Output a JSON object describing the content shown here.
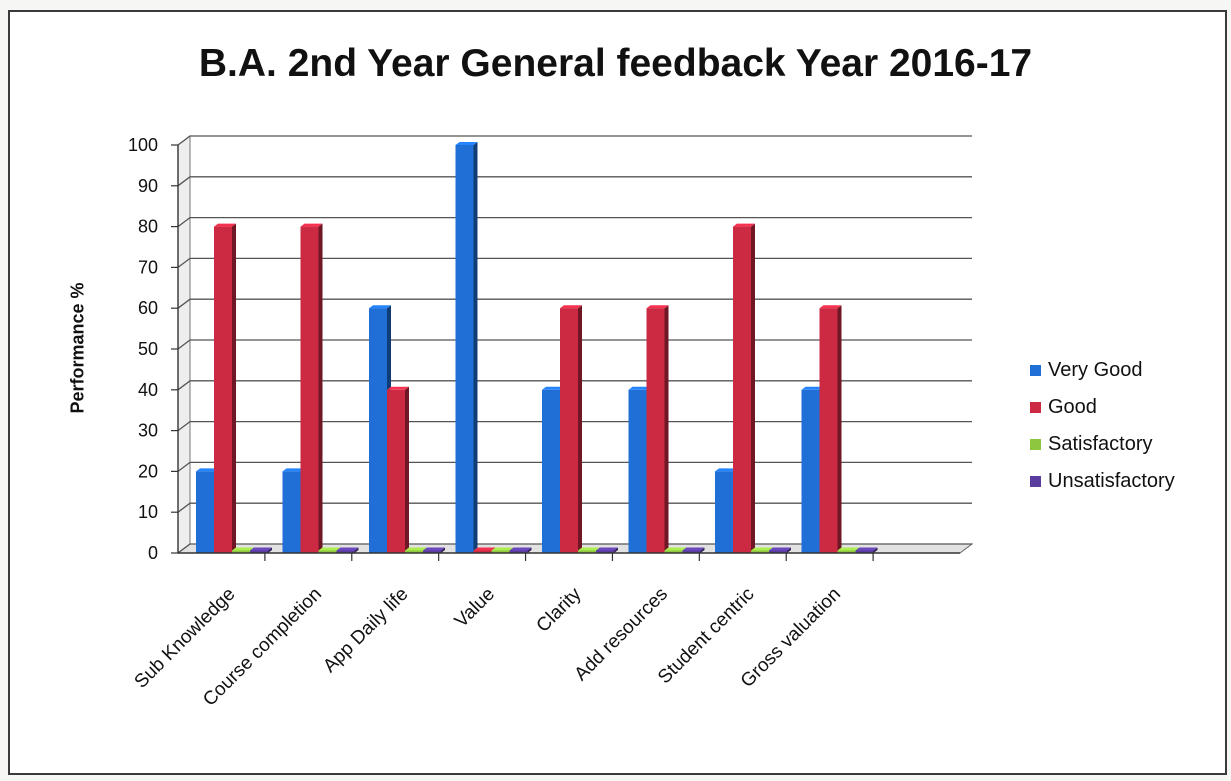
{
  "chart_data": {
    "type": "bar",
    "title": "B.A. 2nd Year General feedback Year 2016-17",
    "ylabel": "Performance %",
    "xlabel": "",
    "ylim": [
      0,
      100
    ],
    "yticks": [
      0,
      10,
      20,
      30,
      40,
      50,
      60,
      70,
      80,
      90,
      100
    ],
    "grid": true,
    "legend_position": "right",
    "categories": [
      "Sub Knowledge",
      "Course completion",
      "App Daily life",
      "Value",
      "Clarity",
      "Add resources",
      "Student centric",
      "Gross valuation"
    ],
    "series": [
      {
        "name": "Very Good",
        "color": "#1f6fd6",
        "values": [
          20,
          20,
          60,
          100,
          40,
          40,
          20,
          40
        ]
      },
      {
        "name": "Good",
        "color": "#cc2a43",
        "values": [
          80,
          80,
          40,
          0,
          60,
          60,
          80,
          60
        ]
      },
      {
        "name": "Satisfactory",
        "color": "#8fc640",
        "values": [
          0,
          0,
          0,
          0,
          0,
          0,
          0,
          0
        ]
      },
      {
        "name": "Unsatisfactory",
        "color": "#5a3c9e",
        "values": [
          0,
          0,
          0,
          0,
          0,
          0,
          0,
          0
        ]
      }
    ]
  }
}
